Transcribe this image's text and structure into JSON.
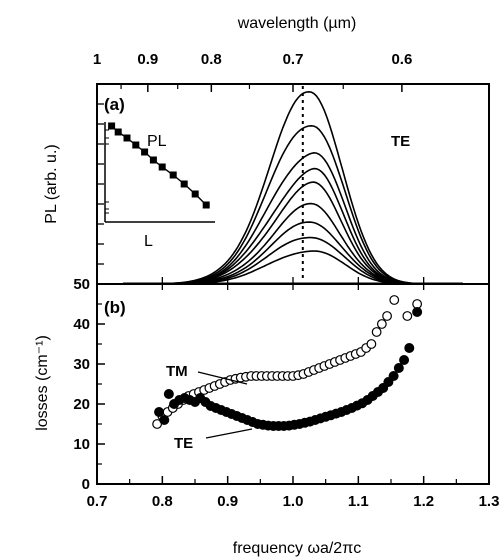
{
  "chart_data": [
    {
      "panel": "a",
      "type": "line",
      "panel_label": "(a)",
      "ylabel": "PL (arb. u.)",
      "x2label": "wavelength (µm)",
      "x2_ticks": [
        {
          "label": "1",
          "value": 1.0
        },
        {
          "label": "0.9",
          "value": 0.9
        },
        {
          "label": "0.8",
          "value": 0.8
        },
        {
          "label": "0.7",
          "value": 0.7
        },
        {
          "label": "0.6",
          "value": 0.6
        }
      ],
      "xlim": [
        0.7,
        1.3
      ],
      "ylim": [
        0,
        1
      ],
      "y_ticks_labeled": false,
      "annotation": "TE",
      "reference_line_x": 1.015,
      "curve_shape": {
        "baseline_start": 0.75,
        "peak_x": 1.03,
        "rise_width": 0.09,
        "fall_width": 0.065,
        "end": 1.24
      },
      "series": [
        {
          "peak": 0.97
        },
        {
          "peak": 0.823
        },
        {
          "peak": 0.674
        },
        {
          "peak": 0.571
        },
        {
          "peak": 0.491
        },
        {
          "peak": 0.389
        },
        {
          "peak": 0.309
        },
        {
          "peak": 0.24
        },
        {
          "peak": 0.171
        }
      ],
      "inset": {
        "type": "scatter",
        "xlabel": "L",
        "ylabel": "PL",
        "y_scale": "log",
        "points": [
          [
            0.06,
            0.96
          ],
          [
            0.12,
            0.9
          ],
          [
            0.2,
            0.84
          ],
          [
            0.28,
            0.77
          ],
          [
            0.36,
            0.7
          ],
          [
            0.44,
            0.62
          ],
          [
            0.52,
            0.55
          ],
          [
            0.62,
            0.47
          ],
          [
            0.72,
            0.38
          ],
          [
            0.82,
            0.28
          ],
          [
            0.92,
            0.17
          ]
        ]
      }
    },
    {
      "panel": "b",
      "type": "scatter",
      "panel_label": "(b)",
      "xlabel": "frequency ωa/2πc",
      "ylabel": "losses (cm⁻¹)",
      "xlim": [
        0.7,
        1.3
      ],
      "ylim": [
        0,
        50
      ],
      "x_ticks": [
        {
          "label": "0.7",
          "value": 0.7
        },
        {
          "label": "0.8",
          "value": 0.8
        },
        {
          "label": "0.9",
          "value": 0.9
        },
        {
          "label": "1.0",
          "value": 1.0
        },
        {
          "label": "1.1",
          "value": 1.1
        },
        {
          "label": "1.2",
          "value": 1.2
        },
        {
          "label": "1.3",
          "value": 1.3
        }
      ],
      "y_ticks": [
        {
          "label": "0",
          "value": 0
        },
        {
          "label": "10",
          "value": 10
        },
        {
          "label": "20",
          "value": 20
        },
        {
          "label": "30",
          "value": 30
        },
        {
          "label": "40",
          "value": 40
        },
        {
          "label": "50",
          "value": 50
        }
      ],
      "series": [
        {
          "name": "TM",
          "marker": "open-circle",
          "points": [
            [
              0.792,
              15
            ],
            [
              0.8,
              17
            ],
            [
              0.808,
              18
            ],
            [
              0.816,
              19
            ],
            [
              0.824,
              20
            ],
            [
              0.832,
              21
            ],
            [
              0.84,
              22
            ],
            [
              0.848,
              22.5
            ],
            [
              0.856,
              23
            ],
            [
              0.864,
              23.5
            ],
            [
              0.872,
              24
            ],
            [
              0.88,
              24.5
            ],
            [
              0.888,
              25
            ],
            [
              0.896,
              25.5
            ],
            [
              0.904,
              26
            ],
            [
              0.912,
              26.3
            ],
            [
              0.92,
              26.6
            ],
            [
              0.928,
              26.8
            ],
            [
              0.936,
              27
            ],
            [
              0.944,
              27
            ],
            [
              0.952,
              27
            ],
            [
              0.96,
              27
            ],
            [
              0.968,
              27
            ],
            [
              0.976,
              27
            ],
            [
              0.984,
              27
            ],
            [
              0.992,
              27
            ],
            [
              1.0,
              27
            ],
            [
              1.008,
              27.2
            ],
            [
              1.016,
              27.5
            ],
            [
              1.024,
              28
            ],
            [
              1.032,
              28.5
            ],
            [
              1.04,
              29
            ],
            [
              1.048,
              29.5
            ],
            [
              1.056,
              30
            ],
            [
              1.064,
              30.5
            ],
            [
              1.072,
              31
            ],
            [
              1.08,
              31.5
            ],
            [
              1.088,
              32
            ],
            [
              1.096,
              32.5
            ],
            [
              1.104,
              33
            ],
            [
              1.112,
              34
            ],
            [
              1.12,
              35
            ],
            [
              1.128,
              38
            ],
            [
              1.136,
              40
            ],
            [
              1.144,
              42
            ],
            [
              1.155,
              46
            ],
            [
              1.175,
              42
            ],
            [
              1.19,
              45
            ]
          ]
        },
        {
          "name": "TE",
          "marker": "filled-circle",
          "points": [
            [
              0.795,
              18
            ],
            [
              0.803,
              16
            ],
            [
              0.81,
              22.5
            ],
            [
              0.818,
              20
            ],
            [
              0.826,
              21
            ],
            [
              0.834,
              21.5
            ],
            [
              0.842,
              21
            ],
            [
              0.85,
              20.5
            ],
            [
              0.858,
              21.5
            ],
            [
              0.866,
              20.5
            ],
            [
              0.874,
              19.5
            ],
            [
              0.882,
              19
            ],
            [
              0.89,
              18.5
            ],
            [
              0.898,
              18
            ],
            [
              0.906,
              17.5
            ],
            [
              0.914,
              17
            ],
            [
              0.922,
              16.5
            ],
            [
              0.93,
              16
            ],
            [
              0.938,
              15.5
            ],
            [
              0.946,
              15
            ],
            [
              0.954,
              14.8
            ],
            [
              0.962,
              14.6
            ],
            [
              0.97,
              14.5
            ],
            [
              0.978,
              14.5
            ],
            [
              0.986,
              14.5
            ],
            [
              0.994,
              14.6
            ],
            [
              1.002,
              14.8
            ],
            [
              1.01,
              15
            ],
            [
              1.018,
              15.3
            ],
            [
              1.026,
              15.6
            ],
            [
              1.034,
              16
            ],
            [
              1.042,
              16.4
            ],
            [
              1.05,
              16.8
            ],
            [
              1.058,
              17.2
            ],
            [
              1.066,
              17.6
            ],
            [
              1.074,
              18
            ],
            [
              1.082,
              18.5
            ],
            [
              1.09,
              19
            ],
            [
              1.098,
              19.6
            ],
            [
              1.106,
              20.2
            ],
            [
              1.114,
              21
            ],
            [
              1.122,
              22
            ],
            [
              1.13,
              23
            ],
            [
              1.138,
              24
            ],
            [
              1.146,
              25.5
            ],
            [
              1.154,
              27
            ],
            [
              1.162,
              29
            ],
            [
              1.17,
              31
            ],
            [
              1.178,
              34
            ],
            [
              1.19,
              43
            ]
          ]
        }
      ]
    }
  ]
}
